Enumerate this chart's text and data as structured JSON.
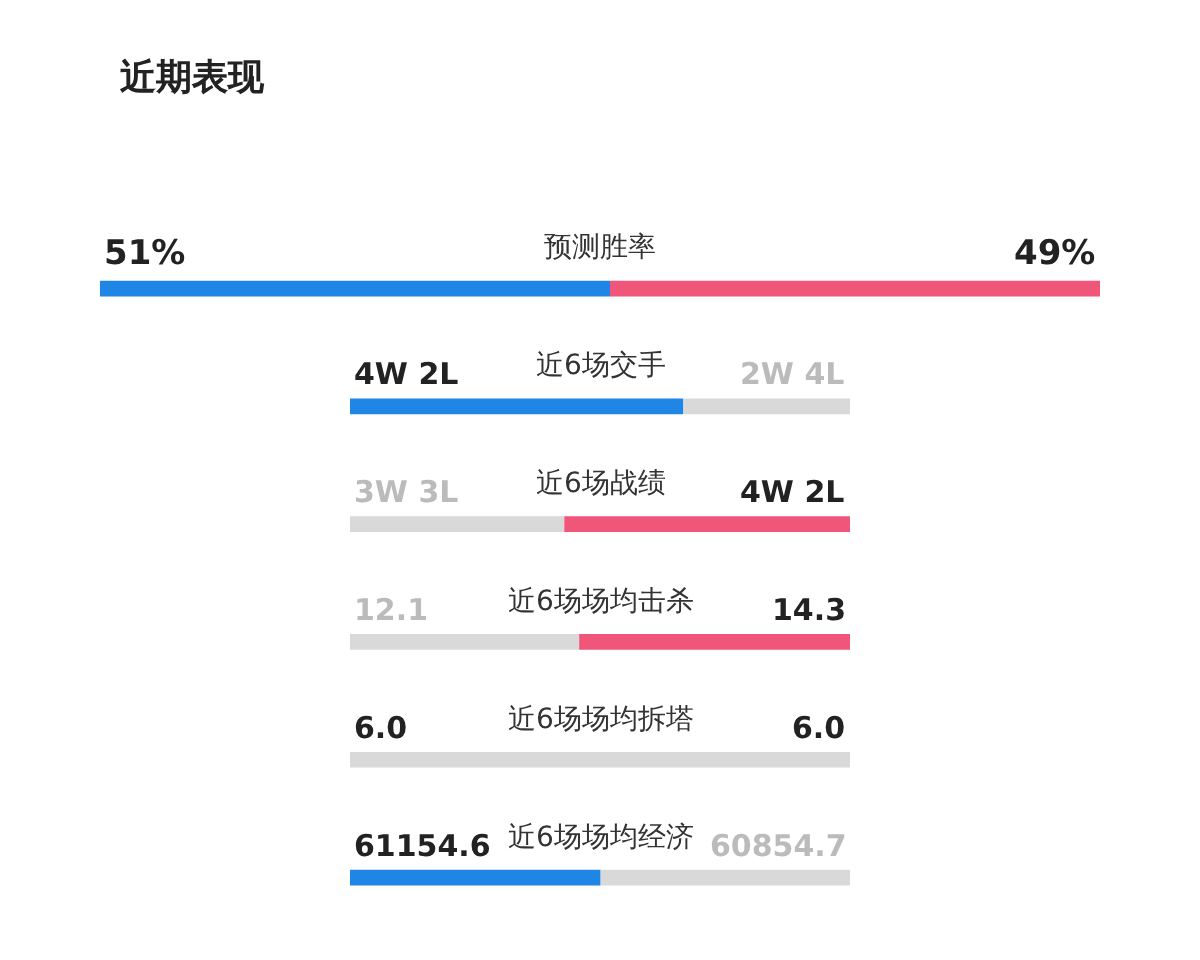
{
  "chart_data": [
    {
      "type": "bar",
      "title": "近期表现",
      "subtitle": "预测胜率",
      "orientation": "horizontal",
      "stacked": true,
      "categories": [
        null
      ],
      "tick_labels": false,
      "series": [
        {
          "colors": [
            "#1f86e6"
          ],
          "values": [
            51
          ],
          "value_labels": [
            "51%"
          ]
        },
        {
          "colors": [
            "#f0557a"
          ],
          "values": [
            49
          ],
          "value_labels": [
            "49%"
          ]
        }
      ]
    },
    {
      "type": "bar",
      "title": "近6场交手",
      "orientation": "horizontal",
      "stacked": true,
      "categories": [
        null
      ],
      "tick_labels": false,
      "series": [
        {
          "colors": [
            "#1f86e6"
          ],
          "values": [
            4
          ],
          "value_labels": [
            "4W 2L"
          ]
        },
        {
          "colors": [
            "#d9d9d9"
          ],
          "values": [
            2
          ],
          "value_labels": [
            "2W 4L"
          ]
        }
      ]
    },
    {
      "type": "bar",
      "title": "近6场战绩",
      "orientation": "horizontal",
      "stacked": true,
      "categories": [
        null
      ],
      "tick_labels": false,
      "series": [
        {
          "colors": [
            "#d9d9d9"
          ],
          "values": [
            3
          ],
          "value_labels": [
            "3W 3L"
          ]
        },
        {
          "colors": [
            "#f0557a"
          ],
          "values": [
            4
          ],
          "value_labels": [
            "4W 2L"
          ]
        }
      ]
    },
    {
      "type": "bar",
      "title": "近6场场均击杀",
      "orientation": "horizontal",
      "stacked": true,
      "categories": [
        null
      ],
      "tick_labels": false,
      "series": [
        {
          "colors": [
            "#d9d9d9"
          ],
          "values": [
            12.1
          ],
          "value_labels": [
            "12.1"
          ]
        },
        {
          "colors": [
            "#f0557a"
          ],
          "values": [
            14.3
          ],
          "value_labels": [
            "14.3"
          ]
        }
      ]
    },
    {
      "type": "bar",
      "title": "近6场场均拆塔",
      "orientation": "horizontal",
      "stacked": true,
      "categories": [
        null
      ],
      "tick_labels": false,
      "series": [
        {
          "colors": [
            "#d9d9d9"
          ],
          "values": [
            6.0
          ],
          "value_labels": [
            "6.0"
          ]
        },
        {
          "colors": [
            "#d9d9d9"
          ],
          "values": [
            6.0
          ],
          "value_labels": [
            "6.0"
          ]
        }
      ]
    },
    {
      "type": "bar",
      "title": "近6场场均经济",
      "orientation": "horizontal",
      "stacked": true,
      "categories": [
        null
      ],
      "tick_labels": false,
      "series": [
        {
          "colors": [
            "#1f86e6"
          ],
          "values": [
            61154.6
          ],
          "value_labels": [
            "61154.6"
          ]
        },
        {
          "colors": [
            "#d9d9d9"
          ],
          "values": [
            60854.7
          ],
          "value_labels": [
            "60854.7"
          ]
        }
      ]
    }
  ]
}
